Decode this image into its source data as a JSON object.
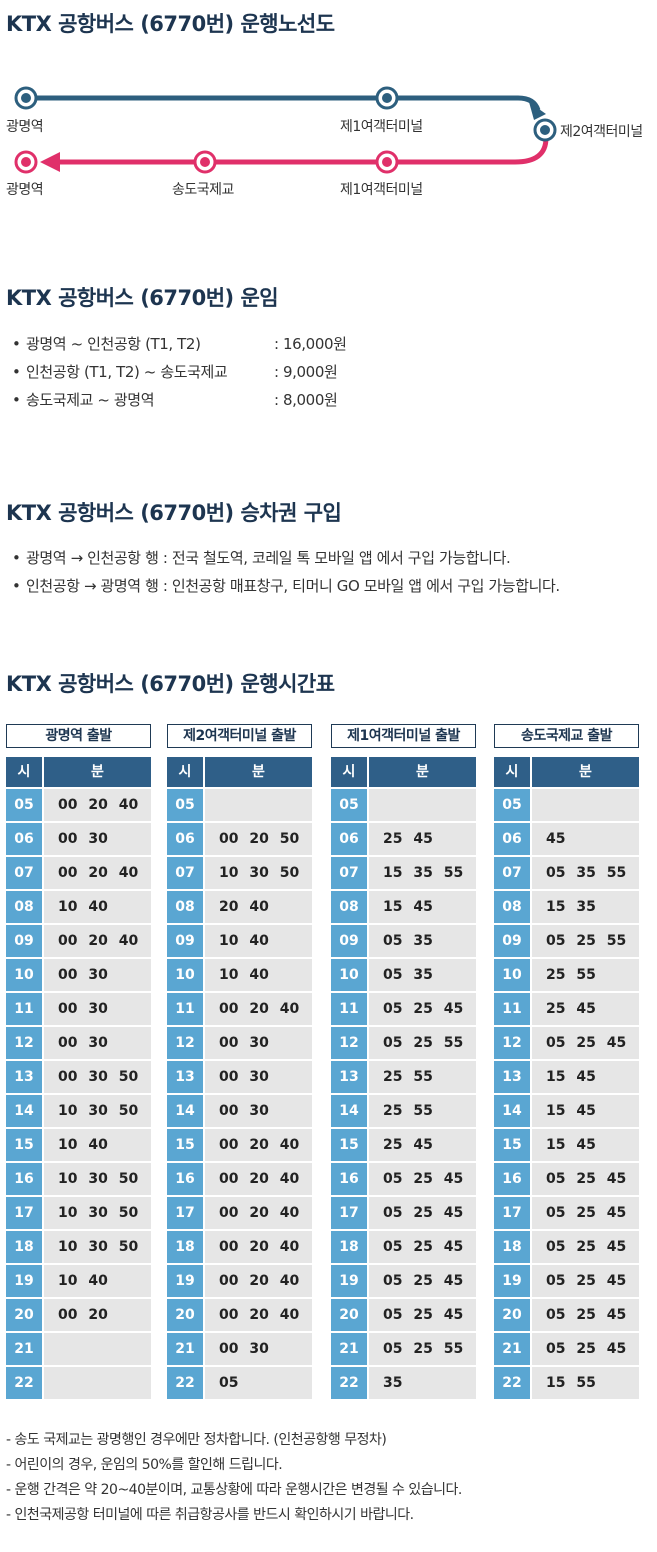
{
  "sections": {
    "route_title": "KTX 공항버스 (6770번) 운행노선도",
    "fare_title": "KTX 공항버스 (6770번) 운임",
    "ticket_title": "KTX 공항버스 (6770번) 승차권 구입",
    "timetable_title": "KTX 공항버스 (6770번) 운행시간표"
  },
  "route": {
    "top_start": "광명역",
    "top_mid": "제1여객터미널",
    "turn": "제2여객터미널",
    "bottom_end": "광명역",
    "bottom_mid1": "송도국제교",
    "bottom_mid2": "제1여객터미널",
    "colors": {
      "outbound": "#2d5f7e",
      "inbound": "#e0306a"
    }
  },
  "fares": [
    {
      "bullet": "•",
      "route": "광명역 ~ 인천공항 (T1, T2)",
      "price": ": 16,000원"
    },
    {
      "bullet": "•",
      "route": "인천공항 (T1, T2) ~ 송도국제교",
      "price": ": 9,000원"
    },
    {
      "bullet": "•",
      "route": "송도국제교 ~ 광명역",
      "price": ": 8,000원"
    }
  ],
  "tickets": [
    {
      "bullet": "•",
      "text": "광명역 → 인천공항 행 : 전국 철도역, 코레일 톡 모바일 앱 에서 구입 가능합니다."
    },
    {
      "bullet": "•",
      "text": "인천공항 → 광명역 행 : 인천공항 매표창구, 티머니 GO 모바일 앱 에서 구입 가능합니다."
    }
  ],
  "timetable_headers": {
    "hour": "시",
    "minute": "분"
  },
  "timetables": [
    {
      "title": "광명역 출발",
      "rows": [
        {
          "h": "05",
          "m": "00 20 40"
        },
        {
          "h": "06",
          "m": "00 30"
        },
        {
          "h": "07",
          "m": "00 20 40"
        },
        {
          "h": "08",
          "m": "10 40"
        },
        {
          "h": "09",
          "m": "00 20 40"
        },
        {
          "h": "10",
          "m": "00 30"
        },
        {
          "h": "11",
          "m": "00 30"
        },
        {
          "h": "12",
          "m": "00 30"
        },
        {
          "h": "13",
          "m": "00 30 50"
        },
        {
          "h": "14",
          "m": "10 30 50"
        },
        {
          "h": "15",
          "m": "10 40"
        },
        {
          "h": "16",
          "m": "10 30 50"
        },
        {
          "h": "17",
          "m": "10 30 50"
        },
        {
          "h": "18",
          "m": "10 30 50"
        },
        {
          "h": "19",
          "m": "10 40"
        },
        {
          "h": "20",
          "m": "00 20"
        },
        {
          "h": "21",
          "m": ""
        },
        {
          "h": "22",
          "m": ""
        }
      ]
    },
    {
      "title": "제2여객터미널 출발",
      "rows": [
        {
          "h": "05",
          "m": ""
        },
        {
          "h": "06",
          "m": "00 20 50"
        },
        {
          "h": "07",
          "m": "10 30 50"
        },
        {
          "h": "08",
          "m": "20 40"
        },
        {
          "h": "09",
          "m": "10 40"
        },
        {
          "h": "10",
          "m": "10 40"
        },
        {
          "h": "11",
          "m": "00 20 40"
        },
        {
          "h": "12",
          "m": "00 30"
        },
        {
          "h": "13",
          "m": "00 30"
        },
        {
          "h": "14",
          "m": "00 30"
        },
        {
          "h": "15",
          "m": "00 20 40"
        },
        {
          "h": "16",
          "m": "00 20 40"
        },
        {
          "h": "17",
          "m": "00 20 40"
        },
        {
          "h": "18",
          "m": "00 20 40"
        },
        {
          "h": "19",
          "m": "00 20 40"
        },
        {
          "h": "20",
          "m": "00 20 40"
        },
        {
          "h": "21",
          "m": "00 30"
        },
        {
          "h": "22",
          "m": "05"
        }
      ]
    },
    {
      "title": "제1여객터미널 출발",
      "rows": [
        {
          "h": "05",
          "m": ""
        },
        {
          "h": "06",
          "m": "25 45"
        },
        {
          "h": "07",
          "m": "15 35 55"
        },
        {
          "h": "08",
          "m": "15 45"
        },
        {
          "h": "09",
          "m": "05 35"
        },
        {
          "h": "10",
          "m": "05 35"
        },
        {
          "h": "11",
          "m": "05 25 45"
        },
        {
          "h": "12",
          "m": "05 25 55"
        },
        {
          "h": "13",
          "m": "25 55"
        },
        {
          "h": "14",
          "m": "25 55"
        },
        {
          "h": "15",
          "m": "25 45"
        },
        {
          "h": "16",
          "m": "05 25 45"
        },
        {
          "h": "17",
          "m": "05 25 45"
        },
        {
          "h": "18",
          "m": "05 25 45"
        },
        {
          "h": "19",
          "m": "05 25 45"
        },
        {
          "h": "20",
          "m": "05 25 45"
        },
        {
          "h": "21",
          "m": "05 25 55"
        },
        {
          "h": "22",
          "m": "35"
        }
      ]
    },
    {
      "title": "송도국제교 출발",
      "rows": [
        {
          "h": "05",
          "m": ""
        },
        {
          "h": "06",
          "m": "45"
        },
        {
          "h": "07",
          "m": "05 35 55"
        },
        {
          "h": "08",
          "m": "15 35"
        },
        {
          "h": "09",
          "m": "05 25 55"
        },
        {
          "h": "10",
          "m": "25 55"
        },
        {
          "h": "11",
          "m": "25 45"
        },
        {
          "h": "12",
          "m": "05 25 45"
        },
        {
          "h": "13",
          "m": "15 45"
        },
        {
          "h": "14",
          "m": "15 45"
        },
        {
          "h": "15",
          "m": "15 45"
        },
        {
          "h": "16",
          "m": "05 25 45"
        },
        {
          "h": "17",
          "m": "05 25 45"
        },
        {
          "h": "18",
          "m": "05 25 45"
        },
        {
          "h": "19",
          "m": "05 25 45"
        },
        {
          "h": "20",
          "m": "05 25 45"
        },
        {
          "h": "21",
          "m": "05 25 45"
        },
        {
          "h": "22",
          "m": "15 55"
        }
      ]
    }
  ],
  "notes": [
    "- 송도 국제교는 광명행인 경우에만 정차합니다. (인천공항행 무정차)",
    "- 어린이의 경우, 운임의 50%를 할인해 드립니다.",
    "- 운행 간격은 약 20~40분이며, 교통상황에 따라 운행시간은 변경될 수 있습니다.",
    "- 인천국제공항 터미널에 따른 취급항공사를 반드시 확인하시기 바랍니다."
  ]
}
